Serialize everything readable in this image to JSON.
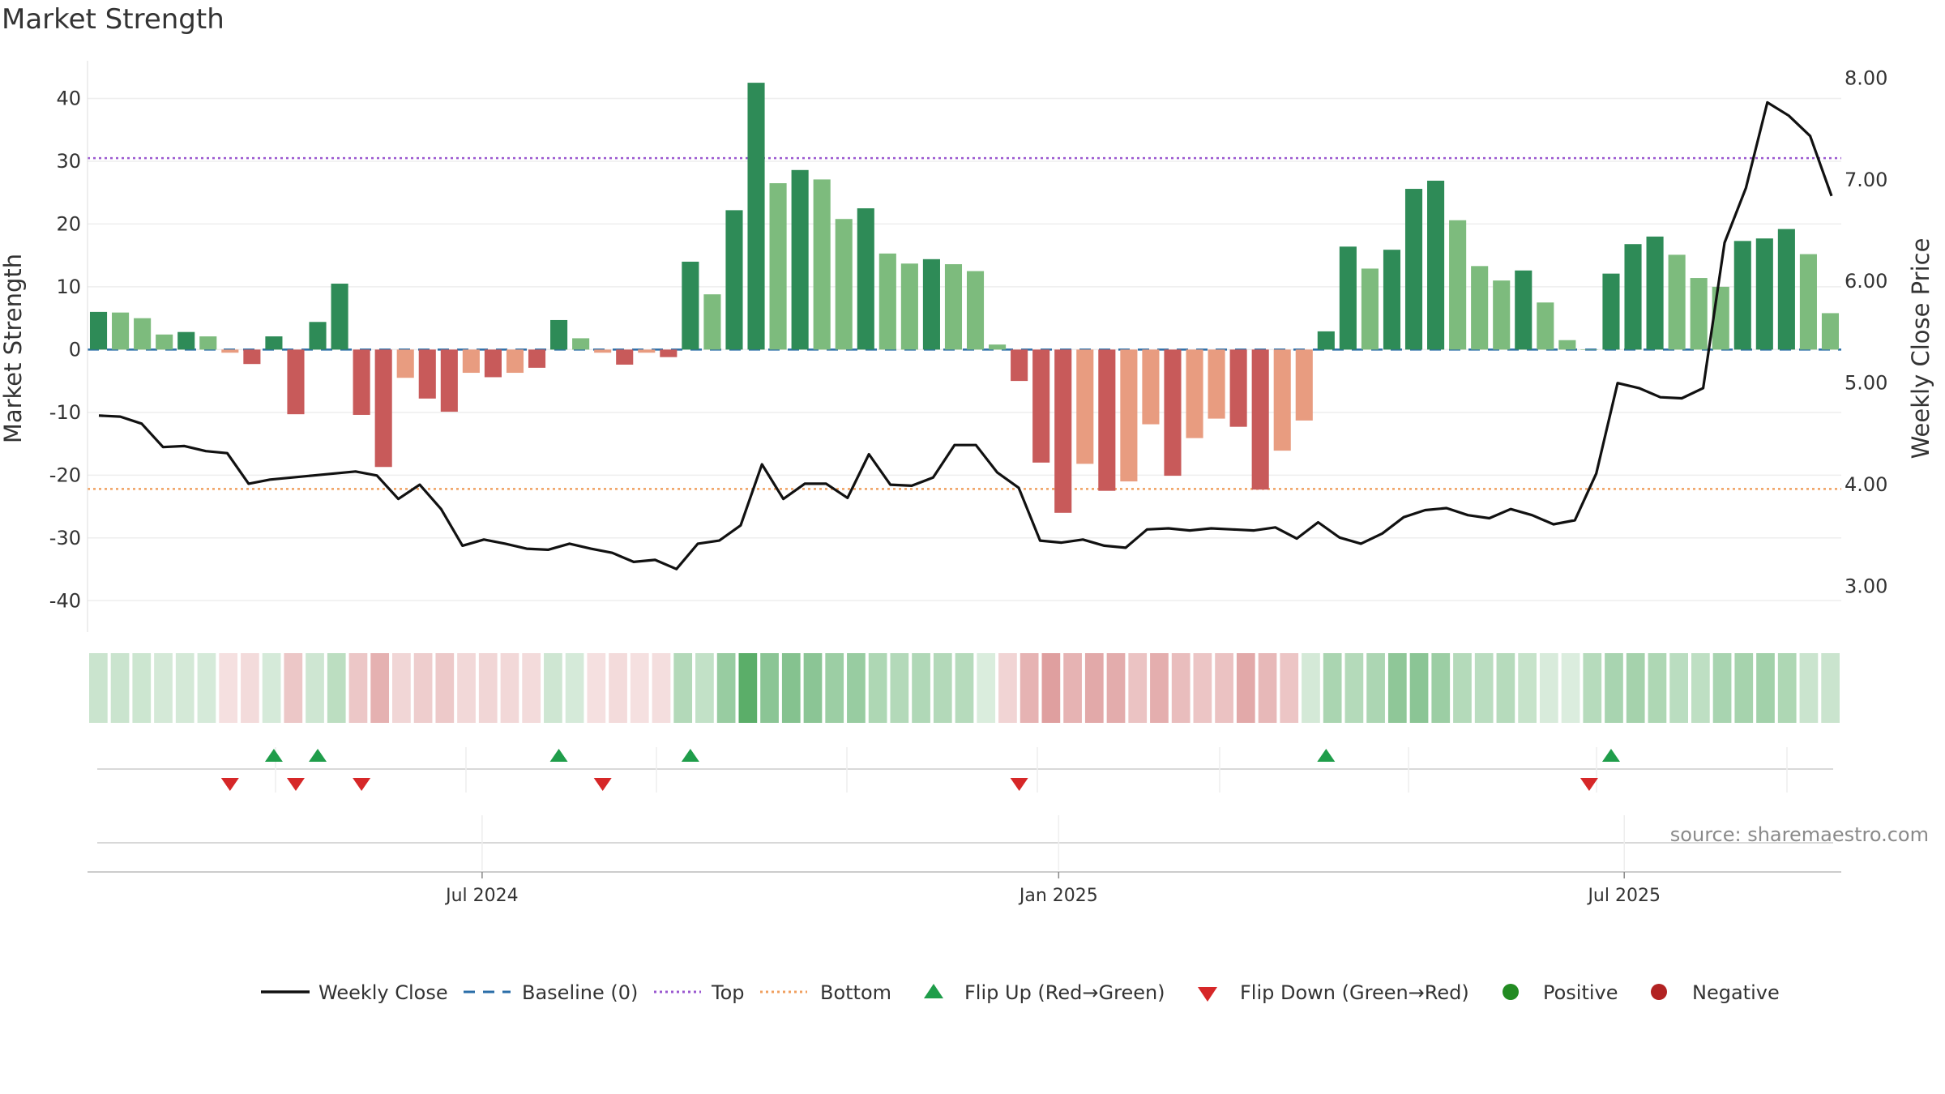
{
  "title": "Market Strength",
  "source": "source: sharemaestro.com",
  "chart_data": {
    "type": "bar",
    "title": "Market Strength",
    "ylabel_left": "Market Strength",
    "ylabel_right": "Weekly Close Price",
    "ylim_left": [
      -45,
      46
    ],
    "ylim_right": [
      2.55,
      8.17
    ],
    "yticks_left": [
      40,
      30,
      20,
      10,
      0,
      -10,
      -20,
      -30,
      -40
    ],
    "yticks_right": [
      "8.00",
      "7.00",
      "6.00",
      "5.00",
      "4.00",
      "3.00"
    ],
    "yticks_right_values": [
      8,
      7,
      6,
      5,
      4,
      3
    ],
    "x_ticks": [
      {
        "label": "Jul 2024",
        "index": 17.5
      },
      {
        "label": "Jan 2025",
        "index": 43.8
      },
      {
        "label": "Jul 2025",
        "index": 69.6
      }
    ],
    "top_threshold": 30.5,
    "bottom_threshold": -22.2,
    "baseline": 0,
    "strength": [
      6.0,
      5.9,
      5.0,
      2.4,
      2.8,
      2.1,
      -0.5,
      -2.3,
      2.1,
      -10.3,
      4.4,
      10.5,
      -10.4,
      -18.7,
      -4.5,
      -7.8,
      -9.9,
      -3.7,
      -4.4,
      -3.7,
      -2.9,
      4.7,
      1.8,
      -0.5,
      -2.4,
      -0.5,
      -1.2,
      14.0,
      8.8,
      22.2,
      42.5,
      26.5,
      28.6,
      27.1,
      20.8,
      22.5,
      15.3,
      13.7,
      14.4,
      13.6,
      12.5,
      0.8,
      -5.0,
      -18.0,
      -26.0,
      -18.2,
      -22.5,
      -21.0,
      -11.9,
      -20.1,
      -14.1,
      -11.0,
      -12.3,
      -22.3,
      -16.1,
      -11.3,
      2.9,
      16.4,
      12.9,
      15.9,
      25.6,
      26.9,
      20.6,
      13.3,
      11.0,
      12.6,
      7.5,
      1.5,
      0.0,
      12.1,
      16.8,
      18.0,
      15.1,
      11.4,
      10.0,
      17.3,
      17.7,
      19.2,
      15.2,
      5.8
    ],
    "weekly_close": [
      4.68,
      4.67,
      4.6,
      4.37,
      4.38,
      4.33,
      4.31,
      4.01,
      4.05,
      4.07,
      4.09,
      4.11,
      4.13,
      4.09,
      3.86,
      4.0,
      3.76,
      3.4,
      3.46,
      3.42,
      3.37,
      3.36,
      3.42,
      3.37,
      3.33,
      3.24,
      3.26,
      3.17,
      3.42,
      3.45,
      3.6,
      4.2,
      3.86,
      4.01,
      4.01,
      3.87,
      4.3,
      4.0,
      3.99,
      4.07,
      4.39,
      4.39,
      4.12,
      3.97,
      3.45,
      3.43,
      3.46,
      3.4,
      3.38,
      3.56,
      3.57,
      3.55,
      3.57,
      3.56,
      3.55,
      3.58,
      3.47,
      3.63,
      3.48,
      3.42,
      3.52,
      3.68,
      3.75,
      3.77,
      3.7,
      3.67,
      3.76,
      3.7,
      3.61,
      3.65,
      4.11,
      5.0,
      4.95,
      4.86,
      4.85,
      4.95,
      6.38,
      6.92,
      7.76,
      7.63,
      7.43,
      6.84
    ],
    "bar_shades": [
      "#2e8b57",
      "#7dbb7d",
      "#e89c80",
      "#c85a5a"
    ],
    "bar_tone_index": [
      0,
      1,
      1,
      1,
      0,
      1,
      2,
      3,
      0,
      3,
      0,
      0,
      3,
      3,
      2,
      3,
      3,
      2,
      3,
      2,
      3,
      0,
      1,
      2,
      3,
      2,
      3,
      0,
      1,
      0,
      0,
      1,
      0,
      1,
      1,
      0,
      1,
      1,
      0,
      1,
      1,
      1,
      3,
      3,
      3,
      2,
      3,
      2,
      2,
      3,
      2,
      2,
      3,
      3,
      2,
      2,
      0,
      0,
      1,
      0,
      0,
      0,
      1,
      1,
      1,
      0,
      1,
      1,
      1,
      0,
      0,
      0,
      1,
      1,
      1,
      0,
      0,
      0,
      1,
      1
    ],
    "flip_up_index": [
      8,
      10,
      21,
      27,
      56,
      69
    ],
    "flip_down_index": [
      6,
      9,
      12,
      23,
      42,
      68
    ]
  },
  "legend": {
    "weekly_close": "Weekly Close",
    "baseline": "Baseline (0)",
    "top": "Top",
    "bottom": "Bottom",
    "flip_up": "Flip Up (Red→Green)",
    "flip_down": "Flip Down (Green→Red)",
    "positive": "Positive",
    "negative": "Negative"
  },
  "colors": {
    "line": "#111111",
    "baseline": "#2b6ea8",
    "top": "#9b59d0",
    "bottom": "#f0a060",
    "flip_up": "#1f9d4a",
    "flip_down": "#d62728",
    "positive": "#228b22",
    "negative": "#b22222",
    "heat_green": "#3a9d4a",
    "heat_red": "#c85a5a"
  }
}
